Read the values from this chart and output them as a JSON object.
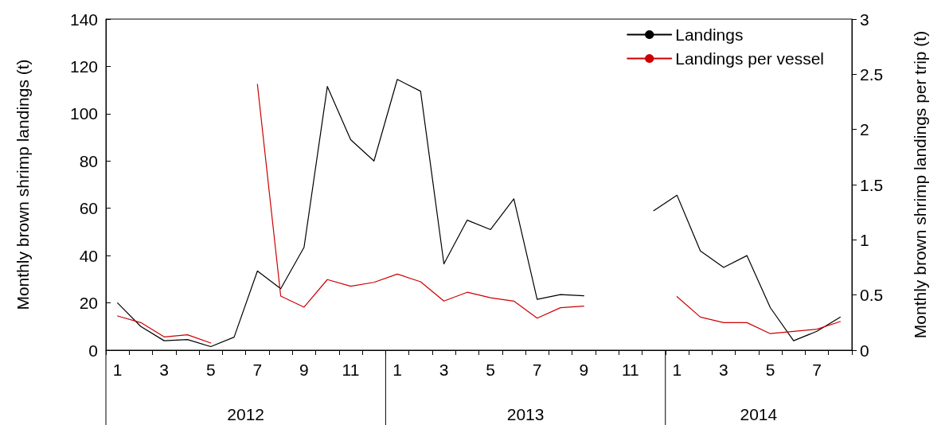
{
  "chart_data": {
    "type": "line",
    "xlabel": null,
    "ylabel": "Monthly brown shrimp landings (t)",
    "y2label": "Monthly brown shrimp landings per trip (t)",
    "categories": [
      "1",
      null,
      "3",
      null,
      "5",
      null,
      "7",
      null,
      "9",
      null,
      "11",
      null,
      "1",
      null,
      "3",
      null,
      "5",
      null,
      "7",
      null,
      "9",
      null,
      "11",
      null,
      "1",
      null,
      "3",
      null,
      "5",
      null,
      "7",
      null
    ],
    "series": [
      {
        "name": "Landings",
        "color": "#000000",
        "values": [
          20,
          10,
          4,
          4.5,
          1.5,
          5.5,
          33.5,
          26,
          43.5,
          111.5,
          89,
          80,
          114.5,
          109.5,
          36.5,
          55,
          51,
          64,
          21.5,
          23.5,
          23,
          null,
          null,
          59,
          65.5,
          42,
          35,
          40,
          18,
          4,
          8,
          14
        ]
      },
      {
        "name": "Landings per vessel",
        "color": "#cc0000",
        "axis": "y2",
        "values": [
          0.31,
          0.25,
          0.12,
          0.14,
          0.065,
          null,
          2.41,
          0.49,
          0.39,
          0.64,
          0.58,
          0.615,
          0.69,
          0.62,
          0.445,
          0.525,
          0.475,
          0.445,
          0.29,
          0.385,
          0.4,
          null,
          null,
          null,
          0.485,
          0.3,
          0.25,
          0.25,
          0.15,
          0.17,
          0.19,
          0.26
        ]
      }
    ],
    "ylim": [
      0,
      140
    ],
    "yticks": [
      0,
      20,
      40,
      60,
      80,
      100,
      120,
      140
    ],
    "y2lim": [
      0,
      3
    ],
    "y2ticks": [
      0,
      0.5,
      1,
      1.5,
      2,
      2.5,
      3
    ],
    "annotations": [
      "2012",
      "2013",
      "2014"
    ],
    "grid": false,
    "legend": "top right",
    "marker": "none",
    "line_style": "solid"
  }
}
